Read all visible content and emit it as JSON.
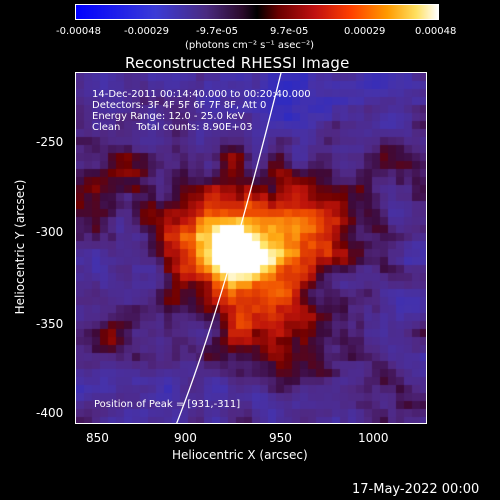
{
  "colorbar": {
    "ticks": [
      "-0.00048",
      "-0.00029",
      "-9.7e-05",
      "9.7e-05",
      "0.00029",
      "0.00048"
    ],
    "units": "(photons cm⁻² s⁻¹ asec⁻²)"
  },
  "title": "Reconstructed RHESSI Image",
  "info": {
    "time": "14-Dec-2011 00:14:40.000 to 00:20:40.000",
    "detectors": "Detectors: 3F 4F 5F 6F 7F 8F, Att 0",
    "energy": "Energy Range: 12.0 - 25.0 keV",
    "clean": "Clean     Total counts: 8.90E+03"
  },
  "peak": "Position of Peak = [931,-311]",
  "axes": {
    "xlabel": "Heliocentric X (arcsec)",
    "ylabel": "Heliocentric Y (arcsec)",
    "xticks": [
      "850",
      "900",
      "950",
      "1000"
    ],
    "yticks": [
      "-250",
      "-300",
      "-350",
      "-400"
    ]
  },
  "footer": "17-May-2022 00:00"
}
